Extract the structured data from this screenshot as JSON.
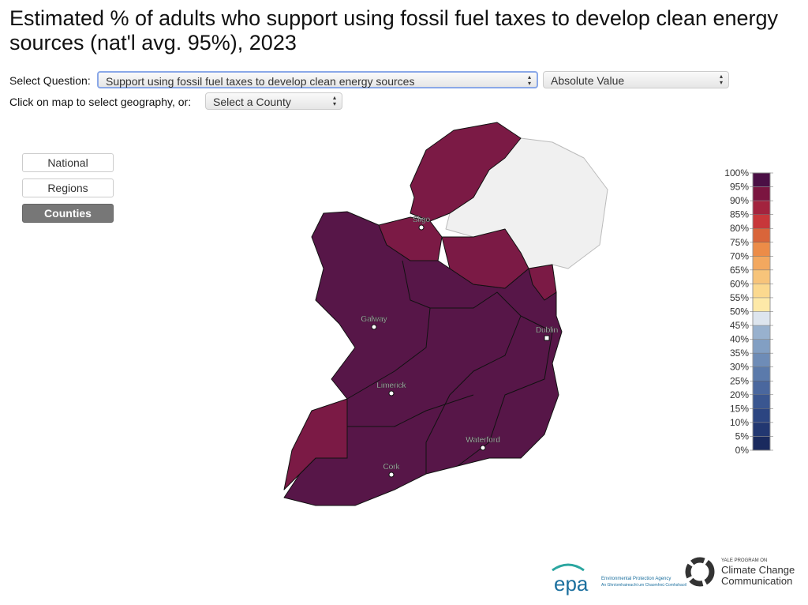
{
  "header": {
    "title": "Estimated % of adults who support using fossil fuel taxes to develop clean energy sources (nat'l avg. 95%), 2023"
  },
  "controls": {
    "question_label": "Select Question:",
    "question_value": "Support using fossil fuel taxes to develop clean energy sources",
    "mode_value": "Absolute Value",
    "geo_label": "Click on map to select geography, or:",
    "county_value": "Select a County"
  },
  "buttons": [
    "National",
    "Regions",
    "Counties"
  ],
  "active_button": 2,
  "map": {
    "cities": [
      "Sligo",
      "Galway",
      "Dublin",
      "Limerick",
      "Waterford",
      "Cork"
    ]
  },
  "legend": {
    "labels": [
      "100%",
      "95%",
      "90%",
      "85%",
      "80%",
      "75%",
      "70%",
      "65%",
      "60%",
      "55%",
      "50%",
      "45%",
      "40%",
      "35%",
      "30%",
      "25%",
      "20%",
      "15%",
      "10%",
      "5%",
      "0%"
    ],
    "colors": [
      "#4b0f45",
      "#7b1540",
      "#a3233e",
      "#c8373a",
      "#d9653a",
      "#ec8c48",
      "#f3a85f",
      "#f7c47a",
      "#fbd98f",
      "#fde9a8",
      "#dde5ee",
      "#98b1ce",
      "#829fc3",
      "#6e8cb7",
      "#5b7aab",
      "#4a679e",
      "#3a5690",
      "#2c4581",
      "#223771",
      "#1a2a5e"
    ]
  },
  "logos": {
    "epa": "epa",
    "epa_name": "Environmental Protection Agency",
    "epa_irish": "An Ghníomhaireacht um Chaomhnú Comhshaoil",
    "yale_top": "YALE PROGRAM ON",
    "yale_line1": "Climate Change",
    "yale_line2": "Communication"
  }
}
